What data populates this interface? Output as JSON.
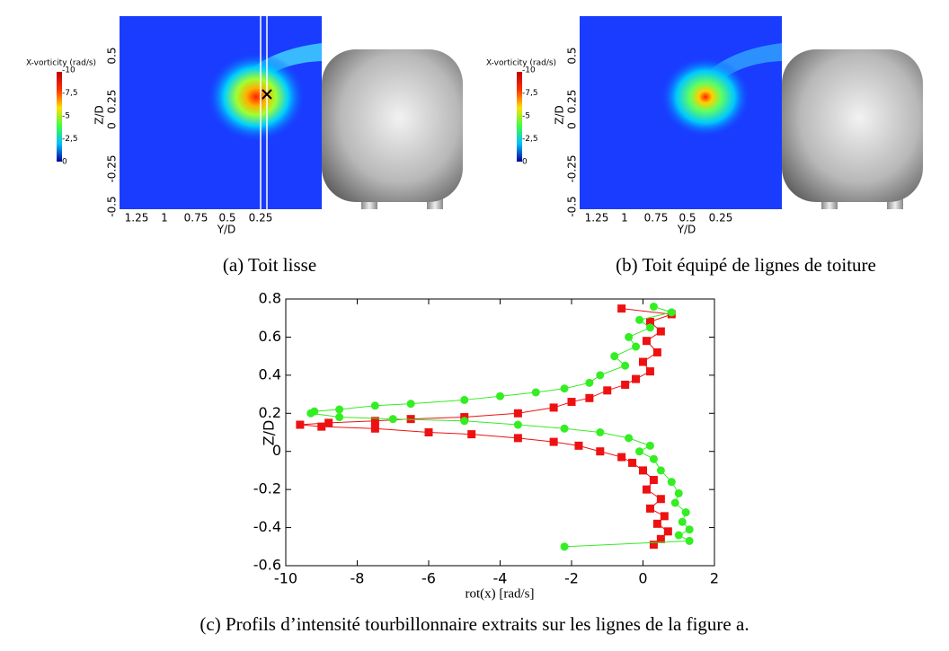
{
  "panels": [
    {
      "caption": "(a) Toit lisse",
      "colorbar_title": "X-vorticity (rad/s)",
      "colorbar_ticks": [
        "-10",
        "-7,5",
        "-5",
        "-2,5",
        "0"
      ],
      "xlabel": "Y/D",
      "ylabel": "Z/D",
      "xticks": [
        "1.25",
        "1",
        "0.75",
        "0.5",
        "0.25"
      ],
      "yticks": [
        "0.5",
        "0.25",
        "0",
        "-0.25",
        "-0.5"
      ]
    },
    {
      "caption": "(b) Toit équipé de lignes de toiture",
      "colorbar_title": "X-vorticity (rad/s)",
      "colorbar_ticks": [
        "-10",
        "-7,5",
        "-5",
        "-2,5",
        "0"
      ],
      "xlabel": "Y/D",
      "ylabel": "Z/D",
      "xticks": [
        "1.25",
        "1",
        "0.75",
        "0.5",
        "0.25"
      ],
      "yticks": [
        "0.5",
        "0.25",
        "0",
        "-0.25",
        "-0.5"
      ]
    }
  ],
  "caption": "(c) Profils d’intensité tourbillonnaire extraits sur les lignes de la figure a.",
  "chart_data": {
    "type": "line",
    "xlabel": "rot(x) [rad/s]",
    "ylabel": "Z/D",
    "xlim": [
      -10,
      2
    ],
    "ylim": [
      -0.6,
      0.8
    ],
    "xticks": [
      -10,
      -8,
      -6,
      -4,
      -2,
      0,
      2
    ],
    "yticks": [
      -0.6,
      -0.4,
      -0.2,
      0,
      0.2,
      0.4,
      0.6,
      0.8
    ],
    "series": [
      {
        "color": "#ee1111",
        "marker": "square",
        "x": [
          -0.6,
          0.8,
          0.2,
          0.5,
          0.1,
          0.4,
          0,
          0.2,
          -0.2,
          -0.5,
          -1,
          -1.5,
          -2,
          -2.5,
          -3.5,
          -5,
          -6.5,
          -7.5,
          -8.8,
          -9.6,
          -9,
          -7.5,
          -6,
          -4.8,
          -3.5,
          -2.5,
          -1.8,
          -1.2,
          -0.6,
          -0.3,
          0,
          0.3,
          0.1,
          0.5,
          0.2,
          0.6,
          0.4,
          0.7,
          0.5,
          0.3
        ],
        "y": [
          0.75,
          0.72,
          0.68,
          0.63,
          0.58,
          0.52,
          0.47,
          0.42,
          0.38,
          0.35,
          0.32,
          0.28,
          0.26,
          0.23,
          0.2,
          0.18,
          0.17,
          0.16,
          0.15,
          0.14,
          0.13,
          0.12,
          0.1,
          0.09,
          0.07,
          0.05,
          0.03,
          0,
          -0.03,
          -0.06,
          -0.1,
          -0.15,
          -0.2,
          -0.25,
          -0.3,
          -0.34,
          -0.38,
          -0.42,
          -0.46,
          -0.49
        ]
      },
      {
        "color": "#33ee22",
        "marker": "circle",
        "x": [
          0.3,
          0.8,
          -0.1,
          0.2,
          -0.4,
          -0.2,
          -0.8,
          -0.5,
          -1.2,
          -1.5,
          -2.2,
          -3,
          -4,
          -5,
          -6.5,
          -7.5,
          -8.5,
          -9.2,
          -9.3,
          -8.5,
          -7,
          -5,
          -3.5,
          -2.2,
          -1.2,
          -0.4,
          0.2,
          -0.1,
          0.3,
          0.5,
          0.8,
          1,
          0.9,
          1.2,
          1.1,
          1.3,
          1,
          1.3,
          -2.2
        ],
        "y": [
          0.76,
          0.73,
          0.69,
          0.65,
          0.6,
          0.55,
          0.5,
          0.45,
          0.4,
          0.36,
          0.33,
          0.31,
          0.29,
          0.27,
          0.25,
          0.24,
          0.22,
          0.21,
          0.2,
          0.18,
          0.17,
          0.16,
          0.14,
          0.12,
          0.1,
          0.07,
          0.03,
          0,
          -0.04,
          -0.1,
          -0.16,
          -0.22,
          -0.27,
          -0.32,
          -0.37,
          -0.41,
          -0.44,
          -0.47,
          -0.5
        ]
      }
    ]
  }
}
